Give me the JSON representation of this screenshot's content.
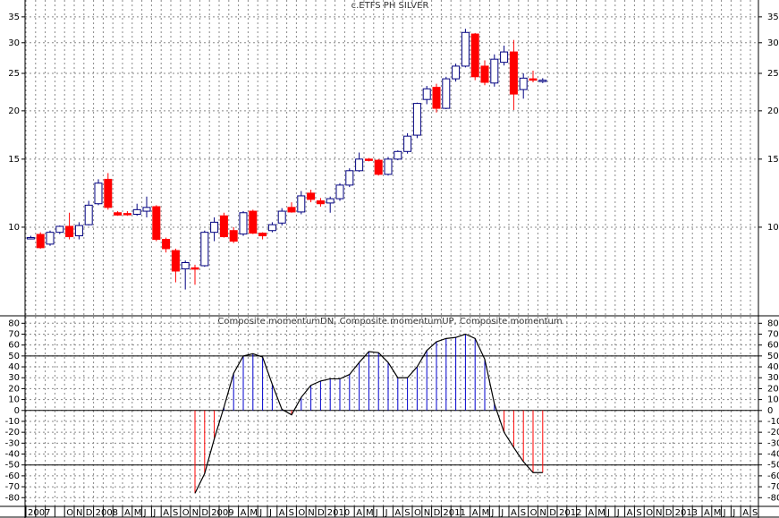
{
  "chart_data": [
    {
      "type": "candlestick",
      "title": "c.ETFS PH SILVER",
      "log_scale": true,
      "grid": true,
      "up_color": "#000080",
      "down_color": "#ff0000",
      "ylim": [
        5.93,
        38.7
      ],
      "yticks": [
        10,
        15,
        20,
        25,
        30,
        35
      ],
      "open": [
        9.35,
        9.58,
        9.04,
        9.7,
        10.05,
        9.5,
        10.15,
        11.5,
        13.3,
        10.9,
        10.85,
        10.8,
        11.0,
        11.3,
        9.3,
        8.7,
        7.8,
        7.85,
        7.95,
        9.7,
        10.7,
        9.8,
        9.6,
        11.0,
        9.65,
        9.8,
        10.25,
        11.25,
        10.95,
        12.25,
        11.7,
        11.55,
        11.85,
        12.85,
        14.0,
        15.0,
        14.9,
        13.7,
        15.0,
        15.7,
        17.3,
        21.4,
        23.0,
        20.3,
        24.2,
        26.1,
        31.6,
        26.1,
        23.6,
        26.7,
        28.4,
        22.7,
        24.2,
        23.9,
        null,
        null,
        null,
        null,
        null,
        null,
        null,
        null,
        null,
        null,
        null,
        null,
        null,
        null,
        null,
        null,
        null,
        null,
        null,
        null,
        null,
        null
      ],
      "high": [
        9.5,
        9.7,
        9.8,
        10.1,
        10.9,
        10.3,
        11.7,
        13.3,
        13.8,
        11.0,
        11.0,
        11.5,
        12.0,
        11.4,
        9.4,
        8.8,
        8.2,
        8.0,
        9.8,
        10.6,
        10.9,
        10.0,
        11.0,
        11.1,
        9.7,
        10.3,
        11.2,
        11.6,
        12.4,
        12.5,
        11.9,
        12.0,
        13.0,
        14.2,
        15.6,
        15.1,
        15.0,
        15.2,
        15.8,
        17.5,
        21.0,
        23.2,
        23.5,
        24.5,
        26.5,
        32.6,
        31.8,
        27.0,
        28.0,
        29.5,
        30.5,
        25.0,
        25.4,
        24.3,
        null,
        null,
        null,
        null,
        null,
        null,
        null,
        null,
        null,
        null,
        null,
        null,
        null,
        null,
        null,
        null,
        null,
        null,
        null,
        null,
        null,
        null
      ],
      "low": [
        9.3,
        8.8,
        8.95,
        9.6,
        9.3,
        9.3,
        10.1,
        11.4,
        11.1,
        10.7,
        10.7,
        10.7,
        10.6,
        9.2,
        8.6,
        7.2,
        6.9,
        7.1,
        7.9,
        9.2,
        9.4,
        9.1,
        9.5,
        9.6,
        9.3,
        9.7,
        10.1,
        10.9,
        10.8,
        11.6,
        11.3,
        10.9,
        11.7,
        12.7,
        13.9,
        14.8,
        13.6,
        13.6,
        14.9,
        15.5,
        17.0,
        20.8,
        19.8,
        20.2,
        23.8,
        25.9,
        24.0,
        23.3,
        23.1,
        26.2,
        20.1,
        21.5,
        23.7,
        23.6,
        null,
        null,
        null,
        null,
        null,
        null,
        null,
        null,
        null,
        null,
        null,
        null,
        null,
        null,
        null,
        null,
        null,
        null,
        null,
        null,
        null,
        null
      ],
      "close": [
        9.4,
        8.85,
        9.7,
        10.05,
        9.45,
        10.1,
        11.4,
        13.0,
        11.25,
        10.75,
        10.8,
        11.1,
        11.25,
        9.3,
        8.8,
        7.7,
        8.1,
        7.8,
        9.7,
        10.3,
        9.45,
        9.2,
        10.9,
        9.65,
        9.5,
        10.15,
        11.0,
        10.95,
        12.05,
        11.8,
        11.5,
        11.85,
        12.85,
        14.0,
        15.0,
        14.9,
        13.7,
        15.0,
        15.7,
        17.2,
        20.9,
        22.8,
        20.3,
        24.2,
        26.1,
        31.9,
        24.5,
        23.7,
        27.2,
        28.4,
        22.1,
        24.3,
        24.0,
        24.0,
        null,
        null,
        null,
        null,
        null,
        null,
        null,
        null,
        null,
        null,
        null,
        null,
        null,
        null,
        null,
        null,
        null,
        null,
        null,
        null,
        null,
        null
      ]
    },
    {
      "type": "bar_line",
      "title": "Composite momentumDN, Composite momentumUP, Composite momentum",
      "grid": true,
      "up_color": "#0000cc",
      "down_color": "#ff0000",
      "line_color": "#000000",
      "ylim": [
        -88,
        86
      ],
      "yticks": [
        -80,
        -70,
        -60,
        -50,
        -40,
        -30,
        -20,
        -10,
        0,
        10,
        20,
        30,
        40,
        50,
        60,
        70,
        80
      ],
      "reference_lines": [
        50,
        0,
        -50
      ],
      "categories": [
        "2007",
        null,
        null,
        null,
        "O",
        "N",
        "D",
        "2008",
        null,
        null,
        "A",
        "M",
        "J",
        "J",
        "A",
        "S",
        "O",
        "N",
        "D",
        "2009",
        null,
        null,
        "A",
        "M",
        "J",
        "J",
        "A",
        "S",
        "O",
        "N",
        "D",
        "2010",
        null,
        null,
        "A",
        "M",
        "J",
        "J",
        "A",
        "S",
        "O",
        "N",
        "D",
        "2011",
        null,
        null,
        "A",
        "M",
        "J",
        "J",
        "A",
        "S",
        "O",
        "N",
        "D",
        "2012",
        null,
        null,
        "A",
        "M",
        "J",
        "J",
        "A",
        "S",
        "O",
        "N",
        "D",
        "2013",
        null,
        null,
        "A",
        "M",
        "J",
        "J",
        "A",
        "S"
      ],
      "values": [
        null,
        null,
        null,
        null,
        null,
        null,
        null,
        null,
        null,
        null,
        null,
        null,
        null,
        null,
        null,
        null,
        null,
        -76,
        -58,
        -26,
        3,
        34,
        50,
        52,
        49,
        24,
        1,
        -4,
        12,
        23,
        27,
        29,
        29,
        33,
        44,
        54,
        53,
        44,
        30,
        30,
        40,
        55,
        63,
        66,
        67,
        70,
        66,
        47,
        6,
        -20,
        -34,
        -47,
        -57,
        -57,
        null,
        null,
        null,
        null,
        null,
        null,
        null,
        null,
        null,
        null,
        null,
        null,
        null,
        null,
        null,
        null,
        null,
        null,
        null,
        null,
        null,
        null
      ]
    }
  ]
}
